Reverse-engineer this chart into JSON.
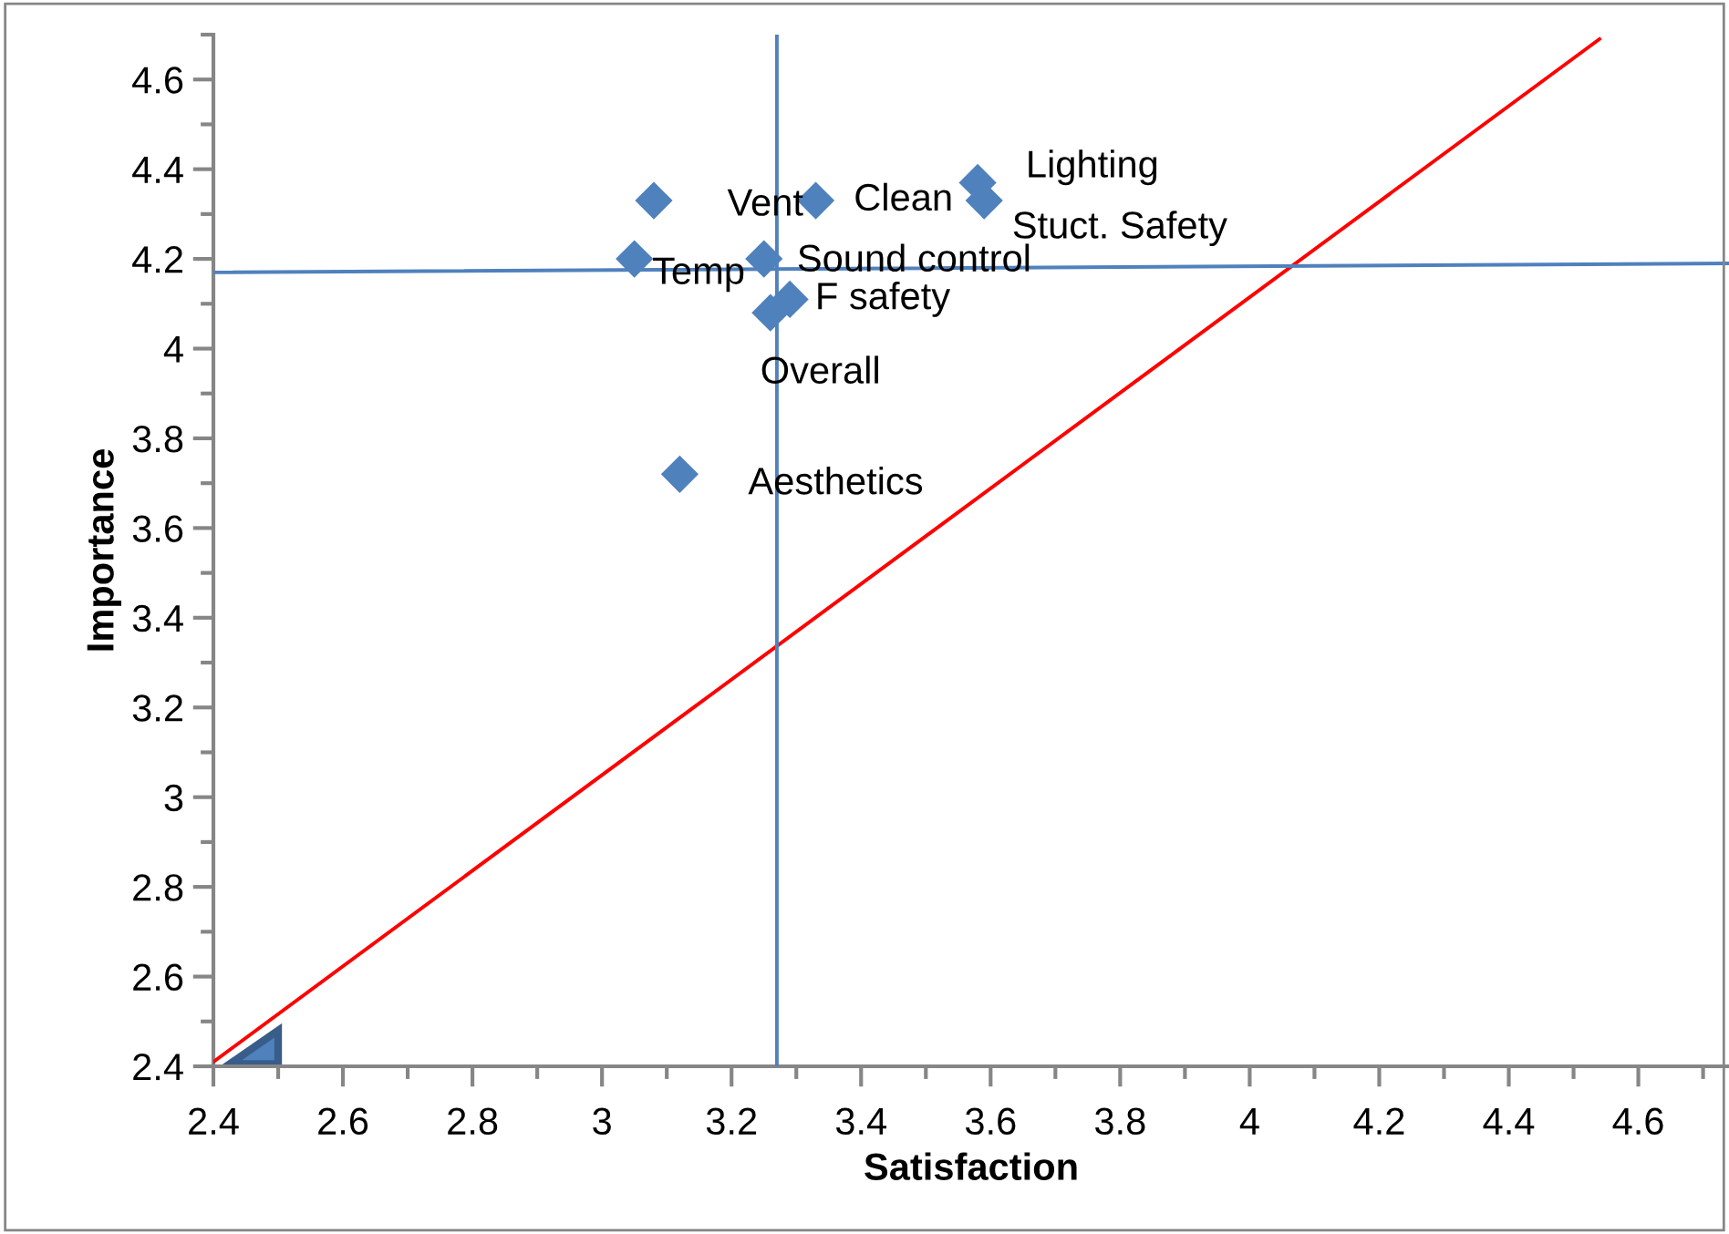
{
  "chart_data": {
    "type": "scatter",
    "xlabel": "Satisfaction",
    "ylabel": "Importance",
    "xlim": [
      2.4,
      4.74
    ],
    "ylim": [
      2.4,
      4.7
    ],
    "xticks": [
      {
        "value": 2.4,
        "label": "2.4"
      },
      {
        "value": 2.6,
        "label": "2.6"
      },
      {
        "value": 2.8,
        "label": "2.8"
      },
      {
        "value": 3,
        "label": "3"
      },
      {
        "value": 3.2,
        "label": "3.2"
      },
      {
        "value": 3.4,
        "label": "3.4"
      },
      {
        "value": 3.6,
        "label": "3.6"
      },
      {
        "value": 3.8,
        "label": "3.8"
      },
      {
        "value": 4,
        "label": "4"
      },
      {
        "value": 4.2,
        "label": "4.2"
      },
      {
        "value": 4.4,
        "label": "4.4"
      },
      {
        "value": 4.6,
        "label": "4.6"
      }
    ],
    "yticks": [
      {
        "value": 2.4,
        "label": "2.4"
      },
      {
        "value": 2.6,
        "label": "2.6"
      },
      {
        "value": 2.8,
        "label": "2.8"
      },
      {
        "value": 3,
        "label": "3"
      },
      {
        "value": 3.2,
        "label": "3.2"
      },
      {
        "value": 3.4,
        "label": "3.4"
      },
      {
        "value": 3.6,
        "label": "3.6"
      },
      {
        "value": 3.8,
        "label": "3.8"
      },
      {
        "value": 4,
        "label": "4"
      },
      {
        "value": 4.2,
        "label": "4.2"
      },
      {
        "value": 4.4,
        "label": "4.4"
      },
      {
        "value": 4.6,
        "label": "4.6"
      }
    ],
    "grid": false,
    "legend": false,
    "series": [
      {
        "marker": "diamond",
        "color": "#4f81bd",
        "x": [
          3.08,
          3.33,
          3.58,
          3.59,
          3.05,
          3.25,
          3.29,
          3.26,
          3.12
        ],
        "values": [
          4.33,
          4.33,
          4.37,
          4.33,
          4.2,
          4.2,
          4.11,
          4.08,
          3.72
        ]
      },
      {
        "type": "line",
        "color": "#ff0000",
        "x": [
          2.4,
          4.54
        ],
        "values": [
          2.41,
          4.69
        ]
      },
      {
        "type": "line",
        "color": "#4f81bd",
        "x": [
          2.4,
          4.74
        ],
        "values": [
          4.17,
          4.19
        ]
      }
    ],
    "ref_lines": [
      {
        "axis": "x",
        "value": 3.27,
        "color": "#4f81bd"
      }
    ],
    "annotations": [
      {
        "text": "Vent",
        "x": 3.08,
        "y": 4.33
      },
      {
        "text": "Clean",
        "x": 3.33,
        "y": 4.33
      },
      {
        "text": "Lighting",
        "x": 3.58,
        "y": 4.37
      },
      {
        "text": "Stuct. Safety",
        "x": 3.59,
        "y": 4.33
      },
      {
        "text": "Temp",
        "x": 3.05,
        "y": 4.2
      },
      {
        "text": "Sound control",
        "x": 3.25,
        "y": 4.2
      },
      {
        "text": "F safety",
        "x": 3.29,
        "y": 4.11
      },
      {
        "text": "Overall",
        "x": 3.26,
        "y": 4.08
      },
      {
        "text": "Aesthetics",
        "x": 3.12,
        "y": 3.72
      }
    ]
  }
}
